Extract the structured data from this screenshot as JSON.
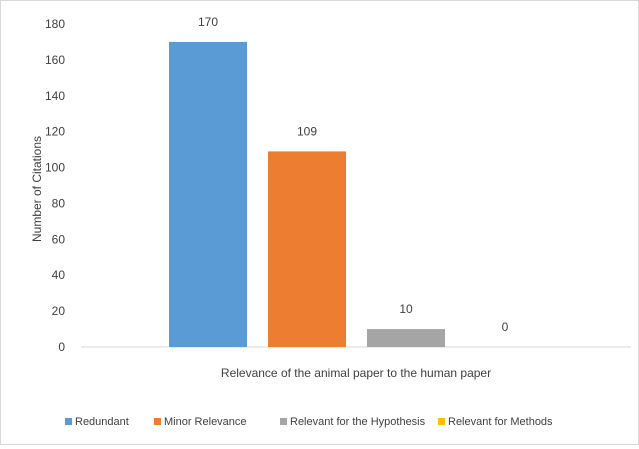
{
  "chart_data": {
    "type": "bar",
    "title": "",
    "xlabel": "Relevance of the animal paper to the human paper",
    "ylabel": "Number of Citations",
    "ylim": [
      0,
      180
    ],
    "yticks": [
      0,
      20,
      40,
      60,
      80,
      100,
      120,
      140,
      160,
      180
    ],
    "grid": false,
    "legend_position": "bottom",
    "categories": [
      "Redundant",
      "Minor Relevance",
      "Relevant for the Hypothesis",
      "Relevant for Methods"
    ],
    "values": [
      170,
      109,
      10,
      0
    ],
    "data_labels": [
      "170",
      "109",
      "10",
      "0"
    ],
    "colors": [
      "#5b9bd5",
      "#ed7d31",
      "#a5a5a5",
      "#ffc000"
    ]
  }
}
